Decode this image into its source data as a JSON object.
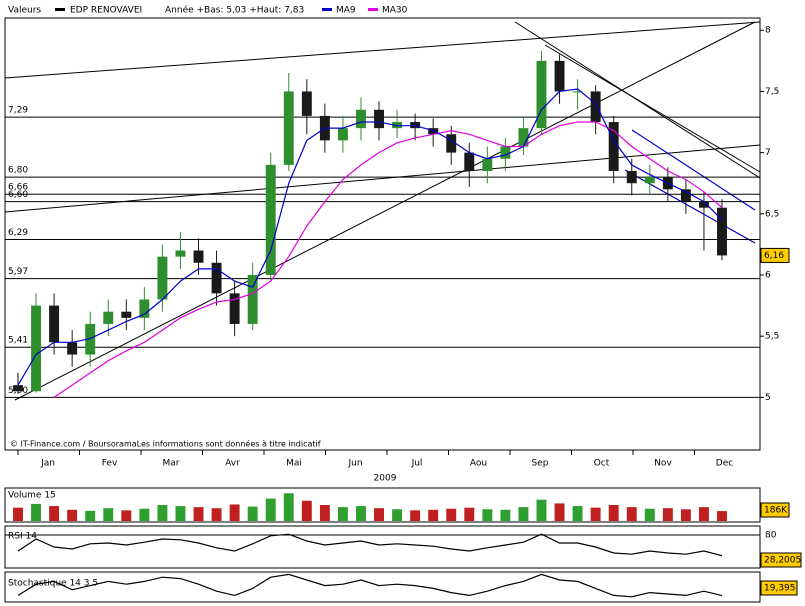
{
  "chart_data": {
    "type": "candlestick",
    "header": {
      "label": "Valeurs",
      "name": "EDP RENOVAVEI",
      "range": "Année +Bas: 5,03 +Haut: 7,83",
      "ma9": "MA9",
      "ma30": "MA30"
    },
    "ma9_color": "#0000cc",
    "ma30_color": "#e000e0",
    "up_color": "#2f8f2f",
    "down_color": "#1a1a1a",
    "source": "© IT-Finance.com / BoursoramaLes informations sont données à titre indicatif",
    "months": [
      "Jan",
      "Fev",
      "Mar",
      "Avr",
      "Mai",
      "Jun",
      "Jul",
      "Aou",
      "Sep",
      "Oct",
      "Nov",
      "Dec"
    ],
    "year": "2009",
    "ylim": [
      4.57,
      8.1
    ],
    "yticks": [
      5,
      {
        "value": 5.5,
        "label": "5,5"
      },
      6,
      {
        "value": 6.5,
        "label": "6,5"
      },
      7,
      {
        "value": 7.5,
        "label": "7,5"
      },
      8
    ],
    "levels": [
      {
        "value": 7.29,
        "label": "7,29"
      },
      {
        "value": 6.8,
        "label": "6,80"
      },
      {
        "value": 6.66,
        "label": "6,66"
      },
      {
        "value": 6.6,
        "label": "6,60"
      },
      {
        "value": 6.29,
        "label": "6,29"
      },
      {
        "value": 5.97,
        "label": "5,97"
      },
      {
        "value": 5.41,
        "label": "5,41"
      },
      {
        "value": 5.0,
        "label": "5,00"
      }
    ],
    "last_price": {
      "value": 6.16,
      "label": "6,16"
    },
    "open": [
      5.1,
      5.05,
      5.75,
      5.45,
      5.35,
      5.6,
      5.7,
      5.65,
      5.8,
      6.15,
      6.2,
      6.1,
      5.85,
      5.6,
      6.0,
      6.9,
      7.5,
      7.3,
      7.1,
      7.2,
      7.35,
      7.2,
      7.25,
      7.2,
      7.15,
      7.0,
      6.85,
      6.95,
      7.05,
      7.2,
      7.75,
      7.5,
      7.5,
      7.25,
      6.85,
      6.75,
      6.8,
      6.7,
      6.6,
      6.55
    ],
    "high": [
      5.2,
      5.85,
      5.85,
      5.55,
      5.7,
      5.8,
      5.8,
      5.9,
      6.25,
      6.35,
      6.3,
      6.2,
      5.95,
      6.1,
      7.0,
      7.65,
      7.6,
      7.4,
      7.3,
      7.45,
      7.42,
      7.35,
      7.32,
      7.28,
      7.22,
      7.08,
      7.05,
      7.12,
      7.3,
      7.83,
      7.8,
      7.6,
      7.55,
      7.3,
      6.95,
      6.9,
      6.88,
      6.78,
      6.68,
      6.62
    ],
    "low": [
      5.03,
      5.04,
      5.35,
      5.25,
      5.25,
      5.5,
      5.55,
      5.55,
      5.7,
      6.05,
      6.0,
      5.75,
      5.5,
      5.55,
      5.95,
      6.85,
      7.15,
      7.0,
      7.0,
      7.1,
      7.1,
      7.12,
      7.1,
      7.05,
      6.9,
      6.72,
      6.75,
      6.85,
      6.98,
      7.15,
      7.4,
      7.35,
      7.15,
      6.75,
      6.65,
      6.65,
      6.6,
      6.5,
      6.2,
      6.12
    ],
    "close": [
      5.05,
      5.75,
      5.45,
      5.35,
      5.6,
      5.7,
      5.65,
      5.8,
      6.15,
      6.2,
      6.1,
      5.85,
      5.6,
      6.0,
      6.9,
      7.5,
      7.3,
      7.1,
      7.2,
      7.35,
      7.2,
      7.25,
      7.2,
      7.15,
      7.0,
      6.85,
      6.95,
      7.05,
      7.2,
      7.75,
      7.5,
      7.5,
      7.25,
      6.85,
      6.75,
      6.8,
      6.7,
      6.6,
      6.55,
      6.16
    ],
    "ma9": [
      5.1,
      5.35,
      5.45,
      5.45,
      5.48,
      5.55,
      5.62,
      5.68,
      5.8,
      5.95,
      6.05,
      6.05,
      5.95,
      5.9,
      6.2,
      6.75,
      7.1,
      7.2,
      7.2,
      7.25,
      7.25,
      7.22,
      7.22,
      7.18,
      7.1,
      7.0,
      6.95,
      6.98,
      7.05,
      7.35,
      7.5,
      7.52,
      7.4,
      7.1,
      6.9,
      6.82,
      6.75,
      6.68,
      6.6,
      6.45
    ],
    "ma30": [
      null,
      null,
      5.0,
      5.1,
      5.2,
      5.3,
      5.38,
      5.45,
      5.55,
      5.65,
      5.72,
      5.78,
      5.8,
      5.85,
      5.95,
      6.15,
      6.4,
      6.6,
      6.78,
      6.9,
      7.0,
      7.08,
      7.12,
      7.15,
      7.18,
      7.15,
      7.1,
      7.05,
      7.05,
      7.15,
      7.22,
      7.25,
      7.25,
      7.18,
      7.05,
      6.95,
      6.85,
      6.78,
      6.68,
      6.55
    ],
    "volume": {
      "label": "Volume 15",
      "ylim": [
        0,
        600000
      ],
      "last": {
        "value": 186000,
        "label": "186K"
      },
      "values": [
        250000,
        320000,
        280000,
        210000,
        190000,
        240000,
        200000,
        230000,
        300000,
        280000,
        260000,
        240000,
        310000,
        270000,
        420000,
        520000,
        380000,
        300000,
        260000,
        280000,
        240000,
        220000,
        200000,
        210000,
        230000,
        250000,
        220000,
        210000,
        260000,
        400000,
        330000,
        280000,
        250000,
        300000,
        260000,
        230000,
        240000,
        220000,
        260000,
        186000
      ]
    },
    "rsi": {
      "label": "RSI 14",
      "ylim": [
        0,
        100
      ],
      "yticks": [
        80
      ],
      "last": {
        "value": 28.2005,
        "label": "28,2005"
      },
      "values": [
        40,
        70,
        50,
        45,
        58,
        60,
        55,
        62,
        70,
        68,
        60,
        48,
        40,
        58,
        78,
        82,
        65,
        55,
        60,
        65,
        55,
        58,
        55,
        52,
        45,
        40,
        48,
        55,
        62,
        82,
        60,
        60,
        50,
        35,
        32,
        40,
        35,
        32,
        40,
        28.2005
      ]
    },
    "stochastic": {
      "label": "Stochastique 14 3 5",
      "ylim": [
        0,
        100
      ],
      "last": {
        "value": 19.395,
        "label": "19,395"
      },
      "values": [
        20,
        60,
        70,
        40,
        55,
        70,
        60,
        70,
        85,
        80,
        60,
        35,
        20,
        45,
        85,
        95,
        75,
        55,
        60,
        75,
        55,
        60,
        55,
        45,
        30,
        20,
        35,
        55,
        70,
        95,
        75,
        70,
        45,
        20,
        15,
        30,
        25,
        20,
        35,
        19.395
      ]
    }
  }
}
